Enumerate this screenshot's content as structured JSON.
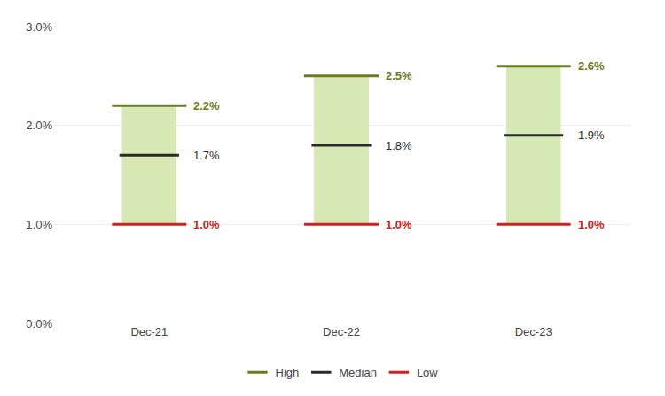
{
  "chart_data": {
    "type": "range_bar",
    "categories": [
      "Dec-21",
      "Dec-22",
      "Dec-23"
    ],
    "color": "#d6e8b4",
    "series": [
      {
        "name": "High",
        "color": "#6b7c1e",
        "values": [
          2.2,
          2.5,
          2.6
        ],
        "value_labels": [
          "2.2%",
          "2.5%",
          "2.6%"
        ]
      },
      {
        "name": "Median",
        "color": "#2a2a2a",
        "values": [
          1.7,
          1.8,
          1.9
        ],
        "value_labels": [
          "1.7%",
          "1.8%",
          "1.9%"
        ]
      },
      {
        "name": "Low",
        "color": "#cc2222",
        "values": [
          1.0,
          1.0,
          1.0
        ],
        "value_labels": [
          "1.0%",
          "1.0%",
          "1.0%"
        ]
      }
    ],
    "ylim": [
      0.0,
      3.0
    ],
    "yticks": [
      {
        "value": 0.0,
        "label": "0.0%"
      },
      {
        "value": 1.0,
        "label": "1.0%"
      },
      {
        "value": 2.0,
        "label": "2.0%"
      },
      {
        "value": 3.0,
        "label": "3.0%"
      }
    ],
    "grid": true,
    "legend": "bottom",
    "data_labels": true
  }
}
